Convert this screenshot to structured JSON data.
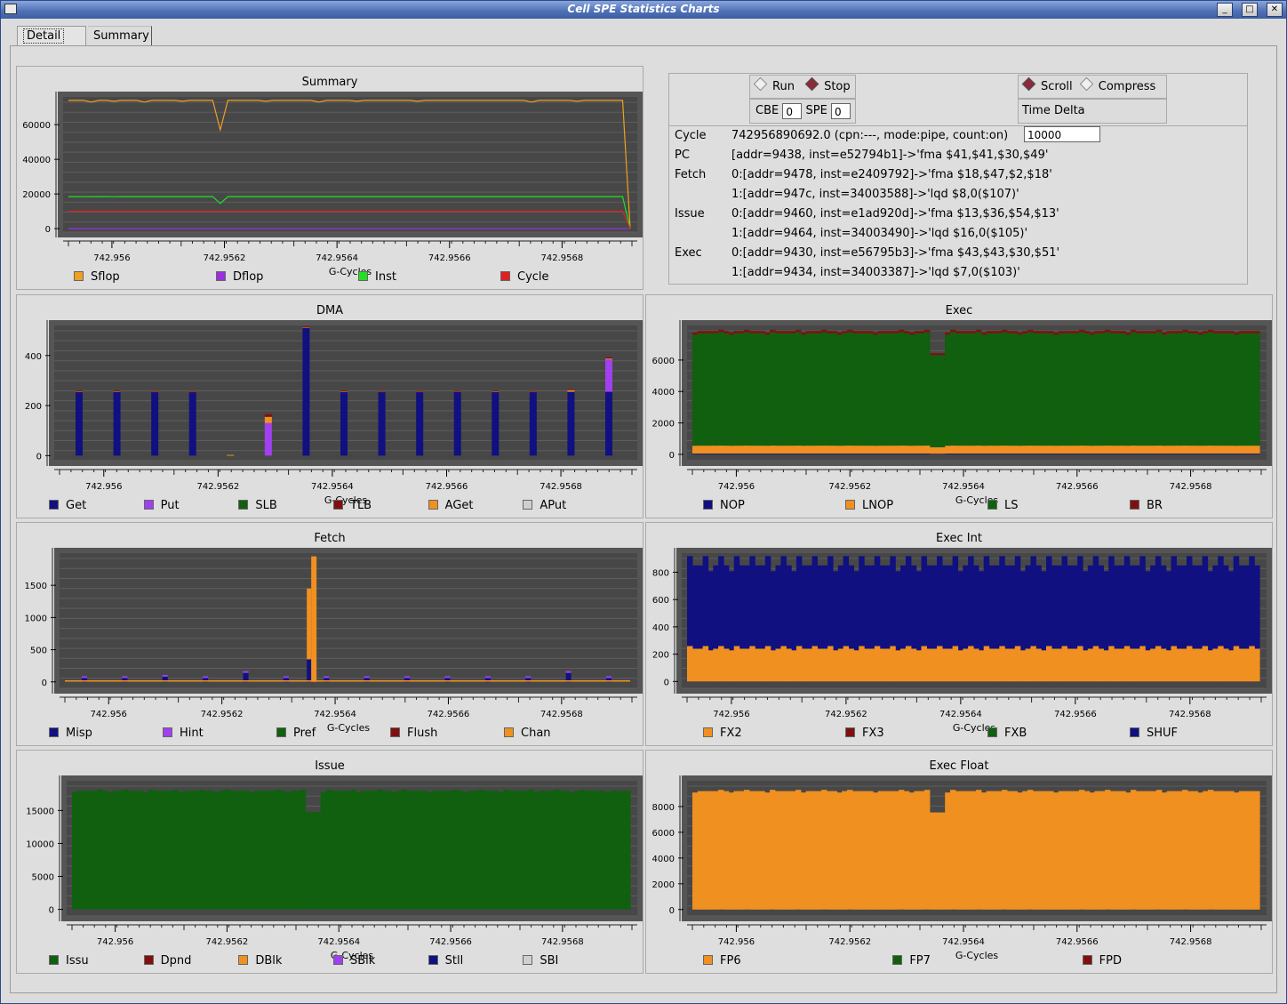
{
  "window": {
    "title": "Cell SPE Statistics Charts",
    "buttons": [
      "_",
      "□",
      "✕"
    ]
  },
  "tabs": [
    {
      "label": "Detail",
      "active": true
    },
    {
      "label": "Summary",
      "active": false
    }
  ],
  "controls": {
    "run_label": "Run",
    "stop_label": "Stop",
    "run_selected": false,
    "stop_selected": true,
    "scroll_label": "Scroll",
    "compress_label": "Compress",
    "scroll_selected": true,
    "compress_selected": false,
    "cbe_label": "CBE",
    "cbe_value": "0",
    "spe_label": "SPE",
    "spe_value": "0",
    "time_delta_label": "Time Delta",
    "time_delta_value": "10000"
  },
  "info": [
    {
      "key": "Cycle",
      "value": "742956890692.0 (cpn:---, mode:pipe, count:on)"
    },
    {
      "key": "PC",
      "value": "[addr=9438, inst=e52794b1]->'fma $41,$41,$30,$49'"
    },
    {
      "key": "Fetch",
      "value": "0:[addr=9478, inst=e2409792]->'fma $18,$47,$2,$18'"
    },
    {
      "key": "",
      "value": "1:[addr=947c, inst=34003588]->'lqd $8,0($107)'"
    },
    {
      "key": "Issue",
      "value": "0:[addr=9460, inst=e1ad920d]->'fma $13,$36,$54,$13'"
    },
    {
      "key": "",
      "value": "1:[addr=9464, inst=34003490]->'lqd $16,0($105)'"
    },
    {
      "key": "Exec",
      "value": "0:[addr=9430, inst=e56795b3]->'fma $43,$43,$30,$51'"
    },
    {
      "key": "",
      "value": "1:[addr=9434, inst=34003387]->'lqd $7,0($103)'"
    }
  ],
  "chart_data": [
    {
      "id": "summary",
      "type": "line",
      "title": "Summary",
      "xlabel": "G-Cycles",
      "ylabel": "",
      "xticks": [
        "742.956",
        "742.9562",
        "742.9564",
        "742.9566",
        "742.9568"
      ],
      "yticks": [
        "0",
        "20000",
        "40000",
        "60000"
      ],
      "ylim": [
        -2000,
        76000
      ],
      "series": [
        {
          "name": "Sflop",
          "color": "#f0a020",
          "values": [
            74000,
            74000,
            74000,
            73000,
            74000,
            74000,
            73500,
            74000,
            74000,
            74000,
            73000,
            74000,
            74000,
            74000,
            74000,
            73500,
            74000,
            74000,
            74000,
            74000,
            57000,
            74000,
            74000,
            74000,
            74000,
            74000,
            73500,
            74000,
            74000,
            74000,
            74000,
            74000,
            74000,
            73000,
            74000,
            74000,
            74000,
            74000,
            73500,
            74000,
            74000,
            74000,
            74000,
            74000,
            74000,
            74000,
            73500,
            74000,
            74000,
            74000,
            74000,
            74000,
            74000,
            74000,
            74000,
            74000,
            74000,
            74000,
            74000,
            74000,
            74000,
            73000,
            74000,
            74000,
            74000,
            74000,
            74000,
            73500,
            74000,
            74000,
            74000,
            74000,
            74000,
            74000,
            0
          ]
        },
        {
          "name": "Dflop",
          "color": "#9a30e0",
          "values": [
            0
          ]
        },
        {
          "name": "Inst",
          "color": "#20e020",
          "values": [
            18500,
            18500,
            18400,
            18500,
            18500,
            18500,
            18400,
            18500,
            18500,
            18500,
            18500,
            18500,
            18500,
            18500,
            18500,
            18500,
            18500,
            18500,
            18500,
            18500,
            14500,
            18500,
            18500,
            18500,
            18500,
            18500,
            18500,
            18500,
            18500,
            18500,
            18500,
            18500,
            18500,
            18500,
            18500,
            18500,
            18500,
            18500,
            18500,
            18500,
            18500,
            18500,
            18500,
            18500,
            18500,
            18500,
            18500,
            18500,
            18500,
            18500,
            18500,
            18500,
            18500,
            18500,
            18500,
            18500,
            18500,
            18500,
            18500,
            18500,
            18500,
            18500,
            18500,
            18500,
            18500,
            18500,
            18500,
            18500,
            18500,
            18500,
            18500,
            18500,
            18500,
            18500,
            0
          ]
        },
        {
          "name": "Cycle",
          "color": "#e02020",
          "values": [
            10000,
            10000,
            10000,
            10000,
            10000,
            10000,
            10000,
            10000,
            10000,
            10000,
            10000,
            10000,
            10000,
            10000,
            10000,
            10000,
            10000,
            10000,
            10000,
            10000,
            10000,
            10000,
            10000,
            10000,
            10000,
            10000,
            10000,
            10000,
            10000,
            10000,
            10000,
            10000,
            10000,
            10000,
            10000,
            10000,
            10000,
            10000,
            10000,
            10000,
            10000,
            10000,
            10000,
            10000,
            10000,
            10000,
            10000,
            10000,
            10000,
            10000,
            10000,
            10000,
            10000,
            10000,
            10000,
            10000,
            10000,
            10000,
            10000,
            10000,
            10000,
            10000,
            10000,
            10000,
            10000,
            10000,
            10000,
            10000,
            10000,
            10000,
            10000,
            10000,
            10000,
            10000,
            0
          ]
        }
      ]
    },
    {
      "id": "dma",
      "type": "bar",
      "title": "DMA",
      "xlabel": "G-Cycles",
      "xticks": [
        "742.956",
        "742.9562",
        "742.9564",
        "742.9566",
        "742.9568"
      ],
      "yticks": [
        "0",
        "200",
        "400"
      ],
      "ylim": [
        -20,
        520
      ],
      "series": [
        {
          "name": "Get",
          "color": "#101080"
        },
        {
          "name": "Put",
          "color": "#a040f0"
        },
        {
          "name": "SLB",
          "color": "#106010"
        },
        {
          "name": "TLB",
          "color": "#801010"
        },
        {
          "name": "AGet",
          "color": "#f09020"
        },
        {
          "name": "APut",
          "color": "#d0d0d0"
        }
      ],
      "bars": [
        {
          "Get": 255,
          "Put": 0,
          "AGet": 3,
          "TLB": 2
        },
        {
          "Get": 255,
          "Put": 0,
          "AGet": 3,
          "TLB": 2
        },
        {
          "Get": 255,
          "Put": 0,
          "AGet": 2,
          "TLB": 1
        },
        {
          "Get": 255,
          "Put": 0,
          "AGet": 2,
          "TLB": 1
        },
        {
          "Get": 0,
          "Put": 0,
          "AGet": 3,
          "TLB": 0
        },
        {
          "Get": 0,
          "Put": 130,
          "AGet": 25,
          "TLB": 10
        },
        {
          "Get": 510,
          "Put": 0,
          "AGet": 3,
          "TLB": 2
        },
        {
          "Get": 255,
          "Put": 0,
          "AGet": 3,
          "TLB": 2
        },
        {
          "Get": 255,
          "Put": 0,
          "AGet": 2,
          "TLB": 1
        },
        {
          "Get": 255,
          "Put": 0,
          "AGet": 2,
          "TLB": 1
        },
        {
          "Get": 255,
          "Put": 0,
          "AGet": 3,
          "TLB": 1
        },
        {
          "Get": 255,
          "Put": 0,
          "AGet": 3,
          "TLB": 2
        },
        {
          "Get": 255,
          "Put": 0,
          "AGet": 2,
          "TLB": 1
        },
        {
          "Get": 255,
          "Put": 0,
          "AGet": 8,
          "TLB": 2
        },
        {
          "Get": 255,
          "Put": 130,
          "AGet": 3,
          "TLB": 5
        }
      ]
    },
    {
      "id": "exec",
      "type": "area",
      "title": "Exec",
      "xlabel": "G-Cycles",
      "xticks": [
        "742.956",
        "742.9562",
        "742.9564",
        "742.9566",
        "742.9568"
      ],
      "yticks": [
        "0",
        "2000",
        "4000",
        "6000"
      ],
      "ylim": [
        -400,
        8200
      ],
      "series": [
        {
          "name": "NOP",
          "color": "#101080",
          "level": 50
        },
        {
          "name": "LNOP",
          "color": "#f09020",
          "level": 550
        },
        {
          "name": "LS",
          "color": "#106010",
          "level": 7700
        },
        {
          "name": "BR",
          "color": "#801010",
          "level": 7850
        }
      ],
      "dip": {
        "index": 30,
        "LS": 6200,
        "BR": 6350,
        "LNOP": 450
      }
    },
    {
      "id": "fetch",
      "type": "bar",
      "title": "Fetch",
      "xlabel": "G-Cycles",
      "xticks": [
        "742.956",
        "742.9562",
        "742.9564",
        "742.9566",
        "742.9568"
      ],
      "yticks": [
        "0",
        "500",
        "1000",
        "1500"
      ],
      "ylim": [
        -100,
        2000
      ],
      "series": [
        {
          "name": "Misp",
          "color": "#101080"
        },
        {
          "name": "Hint",
          "color": "#a040f0"
        },
        {
          "name": "Pref",
          "color": "#106010"
        },
        {
          "name": "Flush",
          "color": "#801010"
        },
        {
          "name": "Chan",
          "color": "#f09020"
        }
      ],
      "bars": [
        60,
        60,
        80,
        60,
        140,
        60,
        60,
        60,
        60,
        60,
        60,
        60,
        140,
        60
      ],
      "spike": {
        "Misp": 350,
        "Chan": 1450,
        "Chan2": 1950
      }
    },
    {
      "id": "execint",
      "type": "area",
      "title": "Exec Int",
      "xlabel": "G-Cycles",
      "xticks": [
        "742.956",
        "742.9562",
        "742.9564",
        "742.9566",
        "742.9568"
      ],
      "yticks": [
        "0",
        "200",
        "400",
        "600",
        "800"
      ],
      "ylim": [
        -50,
        940
      ],
      "series": [
        {
          "name": "FX2",
          "color": "#f09020",
          "level": 240
        },
        {
          "name": "FX3",
          "color": "#801010",
          "level": 0
        },
        {
          "name": "FXB",
          "color": "#106010",
          "level": 0
        },
        {
          "name": "SHUF",
          "color": "#101080",
          "level": 850
        }
      ]
    },
    {
      "id": "issue",
      "type": "area",
      "title": "Issue",
      "xlabel": "G-Cycles",
      "xticks": [
        "742.956",
        "742.9562",
        "742.9564",
        "742.9566",
        "742.9568"
      ],
      "yticks": [
        "0",
        "5000",
        "10000",
        "15000"
      ],
      "ylim": [
        -1000,
        19500
      ],
      "series": [
        {
          "name": "Issu",
          "color": "#106010",
          "level": 18000
        },
        {
          "name": "Dpnd",
          "color": "#801010",
          "level": 0
        },
        {
          "name": "DBlk",
          "color": "#f09020",
          "level": 0
        },
        {
          "name": "SBlk",
          "color": "#a040f0",
          "level": 0
        },
        {
          "name": "Stll",
          "color": "#101080",
          "level": 0
        },
        {
          "name": "SBI",
          "color": "#d0d0d0",
          "level": 0
        }
      ]
    },
    {
      "id": "execfloat",
      "type": "area",
      "title": "Exec Float",
      "xlabel": "G-Cycles",
      "xticks": [
        "742.956",
        "742.9562",
        "742.9564",
        "742.9566",
        "742.9568"
      ],
      "yticks": [
        "0",
        "2000",
        "4000",
        "6000",
        "8000"
      ],
      "ylim": [
        -500,
        10000
      ],
      "series": [
        {
          "name": "FP6",
          "color": "#f09020",
          "level": 9200
        },
        {
          "name": "FP7",
          "color": "#106010",
          "level": 0
        },
        {
          "name": "FPD",
          "color": "#801010",
          "level": 0
        }
      ]
    }
  ]
}
